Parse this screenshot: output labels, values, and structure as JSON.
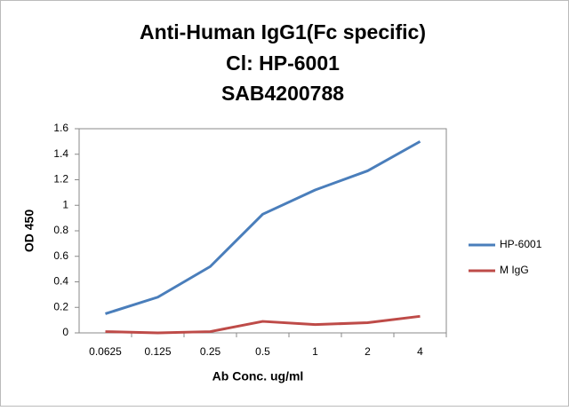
{
  "chart_data": {
    "type": "line",
    "title": [
      "Anti-Human IgG1(Fc specific)",
      "Cl: HP-6001",
      "SAB4200788"
    ],
    "x_label": "Ab Conc. ug/ml",
    "y_label": "OD 450",
    "categories": [
      "0.0625",
      "0.125",
      "0.25",
      "0.5",
      "1",
      "2",
      "4"
    ],
    "series": [
      {
        "name": "HP-6001",
        "color": "#4a7ebb",
        "values": [
          0.15,
          0.28,
          0.52,
          0.93,
          1.12,
          1.27,
          1.5
        ]
      },
      {
        "name": "M IgG",
        "color": "#be4b48",
        "values": [
          0.01,
          0.0,
          0.01,
          0.09,
          0.065,
          0.08,
          0.13
        ]
      }
    ],
    "ylim": [
      0,
      1.6
    ],
    "yticks": [
      0,
      0.2,
      0.4,
      0.6,
      0.8,
      1,
      1.2,
      1.4,
      1.6
    ],
    "grid": false,
    "legend": "right"
  }
}
